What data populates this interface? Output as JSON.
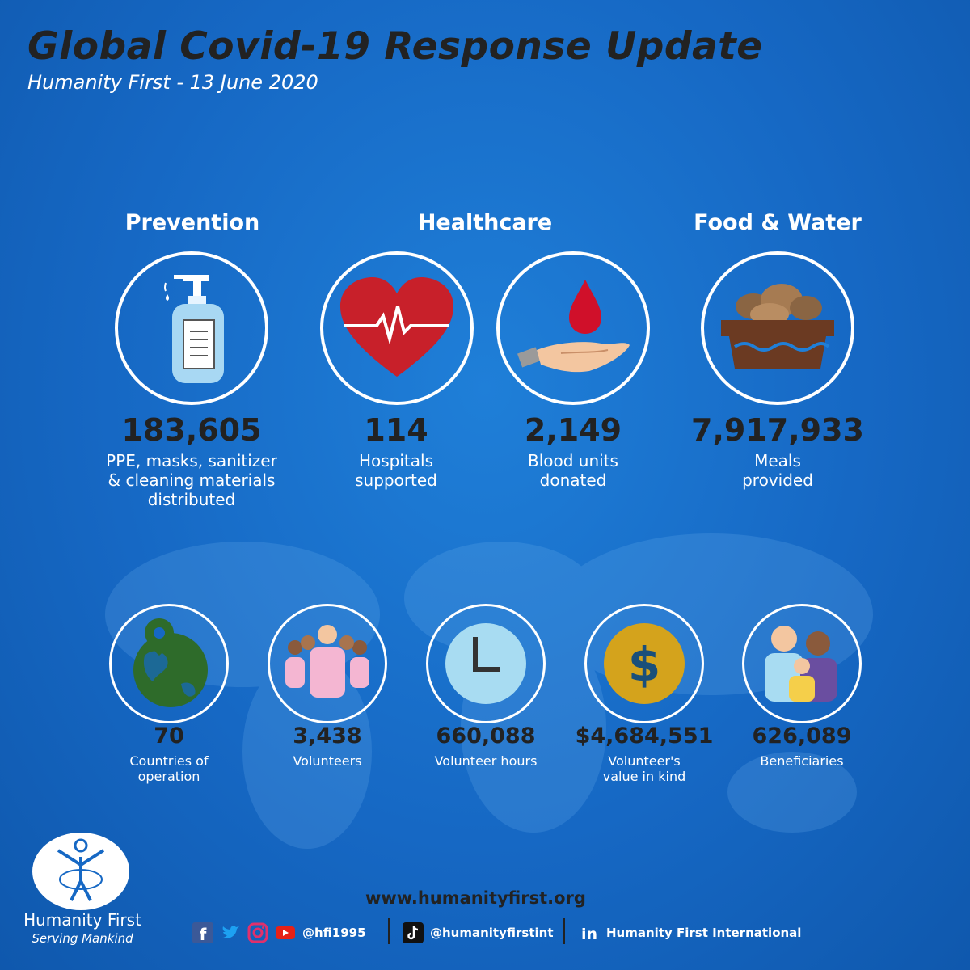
{
  "header": {
    "title": "Global Covid-19 Response Update",
    "subtitle": "Humanity First - 13 June 2020"
  },
  "categories": {
    "prevention": "Prevention",
    "healthcare": "Healthcare",
    "food_water": "Food & Water"
  },
  "top_stats": [
    {
      "value": "183,605",
      "line1": "PPE, masks, sanitizer",
      "line2": "& cleaning materials",
      "line3": "distributed",
      "icon": "sanitizer-icon"
    },
    {
      "value": "114",
      "line1": "Hospitals",
      "line2": "supported",
      "icon": "heart-pulse-icon"
    },
    {
      "value": "2,149",
      "line1": "Blood units",
      "line2": "donated",
      "icon": "blood-drop-hand-icon"
    },
    {
      "value": "7,917,933",
      "line1": "Meals",
      "line2": "provided",
      "icon": "bread-basket-icon"
    }
  ],
  "bottom_stats": [
    {
      "value": "70",
      "line1": "Countries of",
      "line2": "operation",
      "icon": "globe-pin-icon"
    },
    {
      "value": "3,438",
      "line1": "Volunteers",
      "icon": "people-group-icon"
    },
    {
      "value": "660,088",
      "line1": "Volunteer hours",
      "icon": "clock-icon"
    },
    {
      "value": "$4,684,551",
      "line1": "Volunteer's",
      "line2": "value in kind",
      "icon": "dollar-coin-icon"
    },
    {
      "value": "626,089",
      "line1": "Beneficiaries",
      "icon": "family-icon"
    }
  ],
  "footer": {
    "logo_name": "Humanity First",
    "logo_tagline": "Serving Mankind",
    "url": "www.humanityfirst.org",
    "handle_main": "@hfi1995",
    "handle_tiktok": "@humanityfirstint",
    "linkedin": "Humanity First International"
  },
  "colors": {
    "background": "#1668c4",
    "heart": "#c8202a",
    "blood": "#d0102a",
    "globe": "#2e6b2a",
    "coin": "#d4a31c",
    "clock": "#a8dcf2"
  }
}
